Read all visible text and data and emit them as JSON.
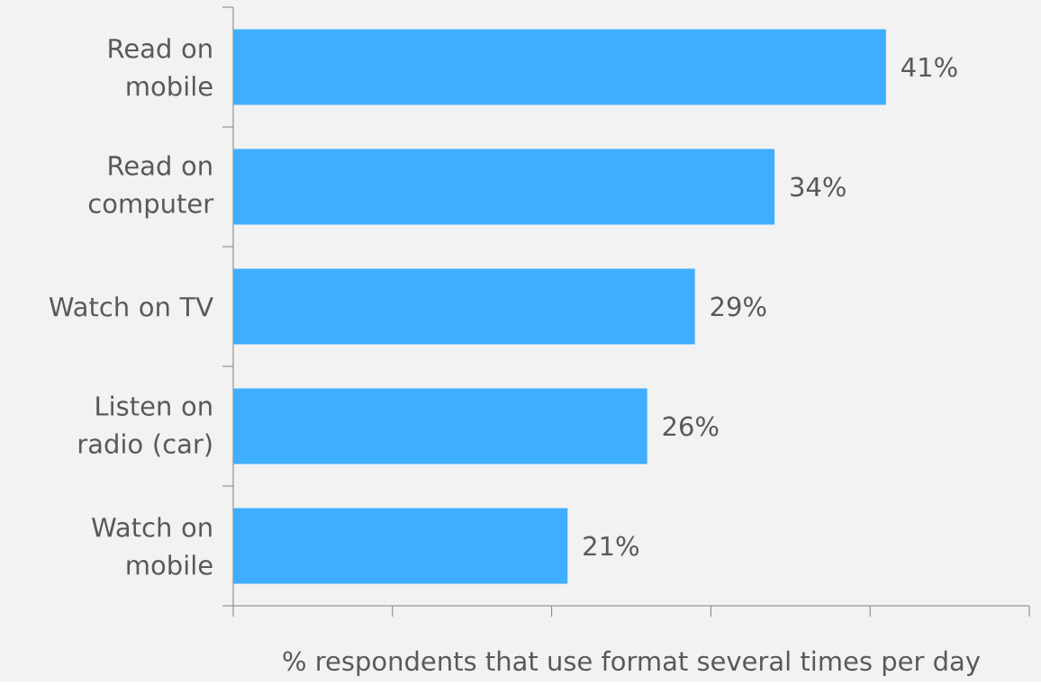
{
  "chart_data": {
    "type": "bar",
    "orientation": "horizontal",
    "categories": [
      "Read on mobile",
      "Read on computer",
      "Watch on TV",
      "Listen on radio (car)",
      "Watch on mobile"
    ],
    "values": [
      41,
      34,
      29,
      26,
      21
    ],
    "value_labels": [
      "41%",
      "34%",
      "29%",
      "26%",
      "21%"
    ],
    "color": "#40aeff",
    "xlabel": "% respondents that use format several times per day",
    "xlim": [
      0,
      50
    ],
    "xticks": [
      {
        "value": 0,
        "label": null
      },
      {
        "value": 10,
        "label": null
      },
      {
        "value": 20,
        "label": null
      },
      {
        "value": 30,
        "label": null
      },
      {
        "value": 40,
        "label": null
      },
      {
        "value": 50,
        "label": null
      }
    ],
    "tick_labels": "y",
    "grid": false
  }
}
